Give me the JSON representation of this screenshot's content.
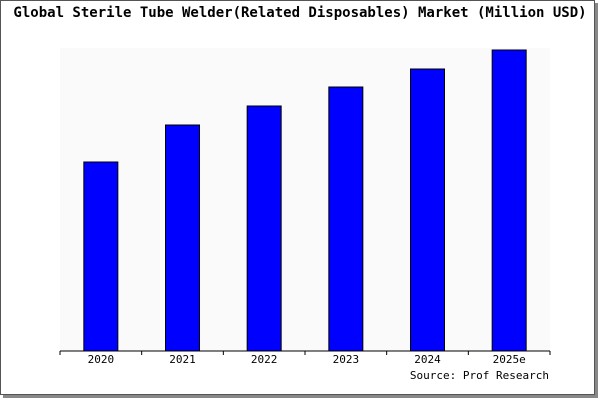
{
  "chart_data": {
    "type": "bar",
    "title": "Global Sterile Tube Welder(Related Disposables) Market (Million USD)",
    "categories": [
      "2020",
      "2021",
      "2022",
      "2023",
      "2024",
      "2025e"
    ],
    "values": [
      189,
      226,
      245,
      264,
      282,
      301
    ],
    "color": "#0000ff",
    "ylim": [
      0,
      301
    ],
    "source": "Source: Prof Research"
  }
}
